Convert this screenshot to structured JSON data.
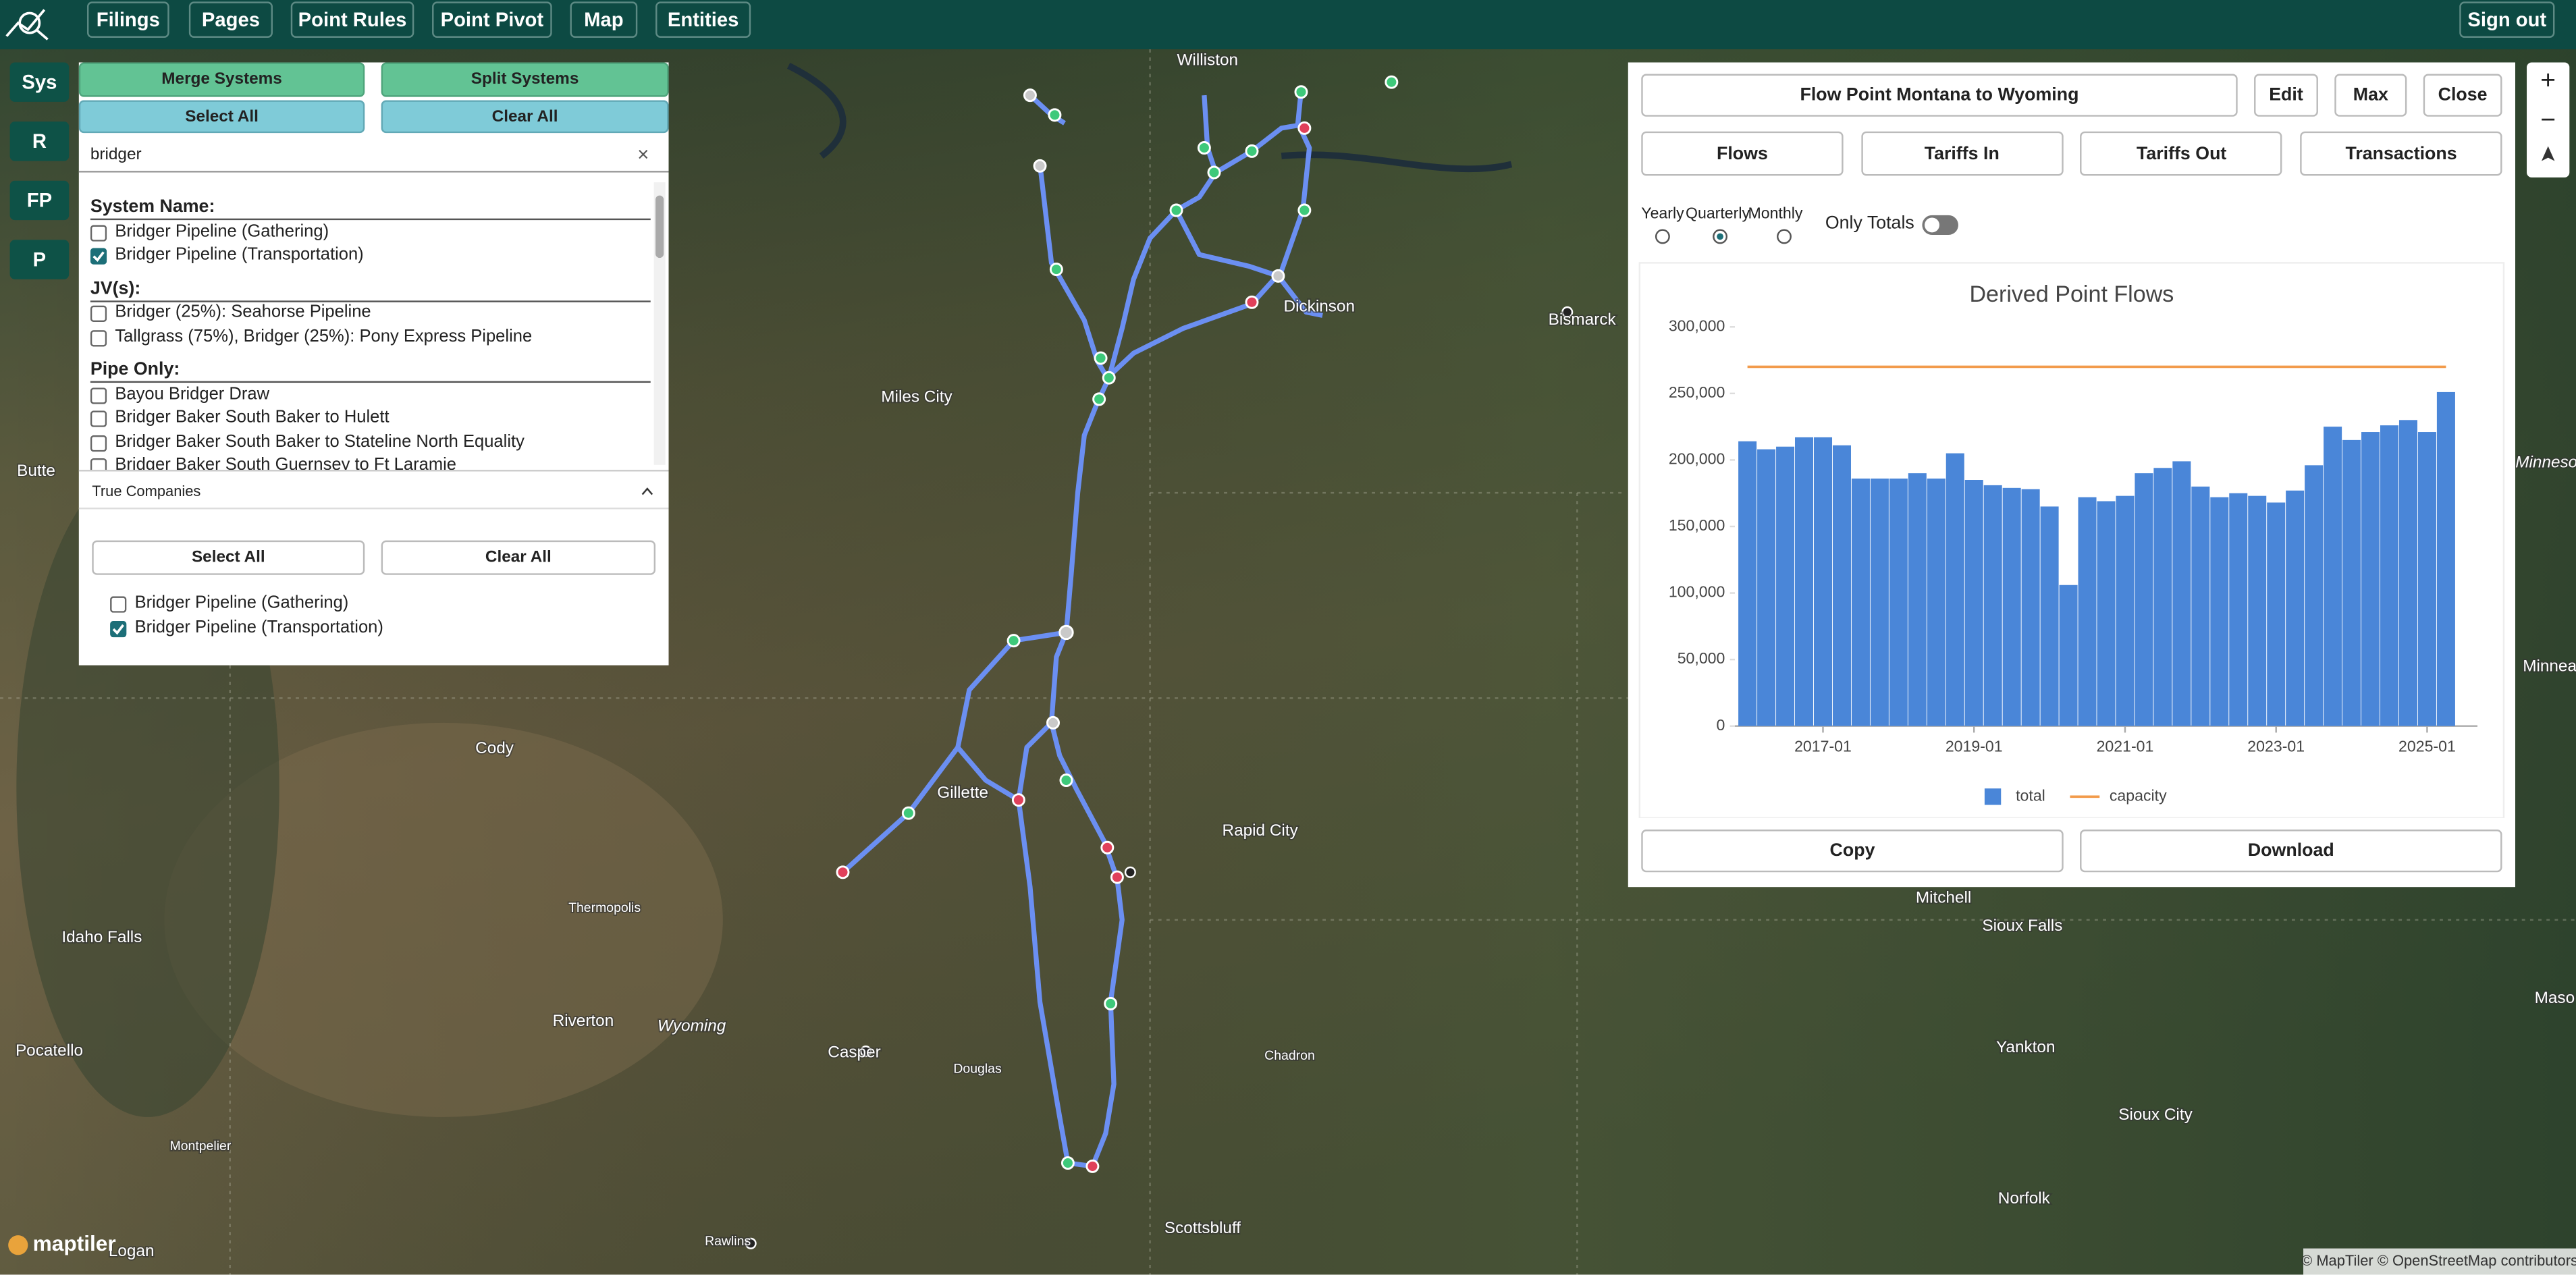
{
  "nav": {
    "items": [
      "Filings",
      "Pages",
      "Point Rules",
      "Point Pivot",
      "Map",
      "Entities"
    ],
    "sign_out": "Sign out"
  },
  "side_buttons": [
    "Sys",
    "R",
    "FP",
    "P"
  ],
  "map_controls": [
    "+",
    "−"
  ],
  "map_labels": [
    "Williston",
    "Dickinson",
    "Bismarck",
    "Miles City",
    "Butte",
    "Cody",
    "Gillette",
    "Rapid City",
    "Thermopolis",
    "Idaho Falls",
    "Riverton",
    "Wyoming",
    "Casper",
    "Douglas",
    "Pocatello",
    "Montpelier",
    "Logan",
    "Rawlins",
    "Chadron",
    "Scottsbluff",
    "Mitchell",
    "Sioux Falls",
    "Yankton",
    "Sioux City",
    "Norfolk",
    "Minneso",
    "Minnea",
    "Maso"
  ],
  "map_logo": "maptiler",
  "attribution": "© MapTiler © OpenStreetMap contributors",
  "systems_panel": {
    "merge": "Merge Systems",
    "split": "Split Systems",
    "select_all": "Select All",
    "clear_all": "Clear All",
    "search": "bridger",
    "clear_search": "×",
    "groups": [
      {
        "heading": "System Name:",
        "items": [
          {
            "label": "Bridger Pipeline (Gathering)",
            "checked": false
          },
          {
            "label": "Bridger Pipeline (Transportation)",
            "checked": true
          }
        ]
      },
      {
        "heading": "JV(s):",
        "items": [
          {
            "label": "Bridger (25%): Seahorse Pipeline",
            "checked": false
          },
          {
            "label": "Tallgrass (75%), Bridger (25%): Pony Express Pipeline",
            "checked": false
          }
        ]
      },
      {
        "heading": "Pipe Only:",
        "items": [
          {
            "label": "Bayou Bridger Draw",
            "checked": false
          },
          {
            "label": "Bridger Baker South Baker to Hulett",
            "checked": false
          },
          {
            "label": "Bridger Baker South Baker to Stateline North Equality",
            "checked": false
          },
          {
            "label": "Bridger Baker South Guernsey to Ft Laramie",
            "checked": false
          }
        ]
      }
    ]
  },
  "true_companies": {
    "title": "True Companies",
    "select_all": "Select All",
    "clear_all": "Clear All",
    "items": [
      {
        "label": "Bridger Pipeline (Gathering)",
        "checked": false
      },
      {
        "label": "Bridger Pipeline (Transportation)",
        "checked": true
      }
    ]
  },
  "flow_panel": {
    "title": "Flow Point Montana to Wyoming",
    "edit": "Edit",
    "max": "Max",
    "close": "Close",
    "tabs": [
      "Flows",
      "Tariffs In",
      "Tariffs Out",
      "Transactions"
    ],
    "periods": [
      "Yearly",
      "Quarterly",
      "Monthly"
    ],
    "selected_period": "Quarterly",
    "only_totals": "Only Totals",
    "only_totals_on": false,
    "copy": "Copy",
    "download": "Download"
  },
  "chart_data": {
    "type": "bar",
    "title": "Derived Point Flows",
    "x": [
      "2016-01",
      "2016-04",
      "2016-07",
      "2016-10",
      "2017-01",
      "2017-04",
      "2017-07",
      "2017-10",
      "2018-01",
      "2018-04",
      "2018-07",
      "2018-10",
      "2019-01",
      "2019-04",
      "2019-07",
      "2019-10",
      "2020-01",
      "2020-04",
      "2020-07",
      "2020-10",
      "2021-01",
      "2021-04",
      "2021-07",
      "2021-10",
      "2022-01",
      "2022-04",
      "2022-07",
      "2022-10",
      "2023-01",
      "2023-04",
      "2023-07",
      "2023-10",
      "2024-01",
      "2024-04",
      "2024-07",
      "2024-10",
      "2025-01",
      "2025-04"
    ],
    "series": [
      {
        "name": "total",
        "type": "bar",
        "color": "#4a86d8",
        "values": [
          214000,
          208000,
          210000,
          217000,
          217000,
          211000,
          186000,
          186000,
          186000,
          190000,
          186000,
          205000,
          185000,
          181000,
          179000,
          178000,
          165000,
          106000,
          172000,
          169000,
          173000,
          190000,
          194000,
          199000,
          180000,
          172000,
          175000,
          173000,
          168000,
          177000,
          196000,
          225000,
          215000,
          221000,
          226000,
          230000,
          221000,
          251000
        ]
      },
      {
        "name": "capacity",
        "type": "line",
        "color": "#f29b4b",
        "values": [
          270000,
          270000,
          270000,
          270000,
          270000,
          270000,
          270000,
          270000,
          270000,
          270000,
          270000,
          270000,
          270000,
          270000,
          270000,
          270000,
          270000,
          270000,
          270000,
          270000,
          270000,
          270000,
          270000,
          270000,
          270000,
          270000,
          270000,
          270000,
          270000,
          270000,
          270000,
          270000,
          270000,
          270000,
          270000,
          270000,
          270000,
          270000
        ]
      }
    ],
    "xlim": [
      "2015-11",
      "2025-09"
    ],
    "xticks": [
      "2017-01",
      "2019-01",
      "2021-01",
      "2023-01",
      "2025-01"
    ],
    "ylim": [
      0,
      300000
    ],
    "yticks": [
      0,
      {
        "value": 50000,
        "label": "50,000"
      },
      {
        "value": 100000,
        "label": "100,000"
      },
      {
        "value": 150000,
        "label": "150,000"
      },
      {
        "value": 200000,
        "label": "200,000"
      },
      {
        "value": 250000,
        "label": "250,000"
      },
      {
        "value": 300000,
        "label": "300,000"
      }
    ],
    "grid": false,
    "legend": "bottom"
  }
}
